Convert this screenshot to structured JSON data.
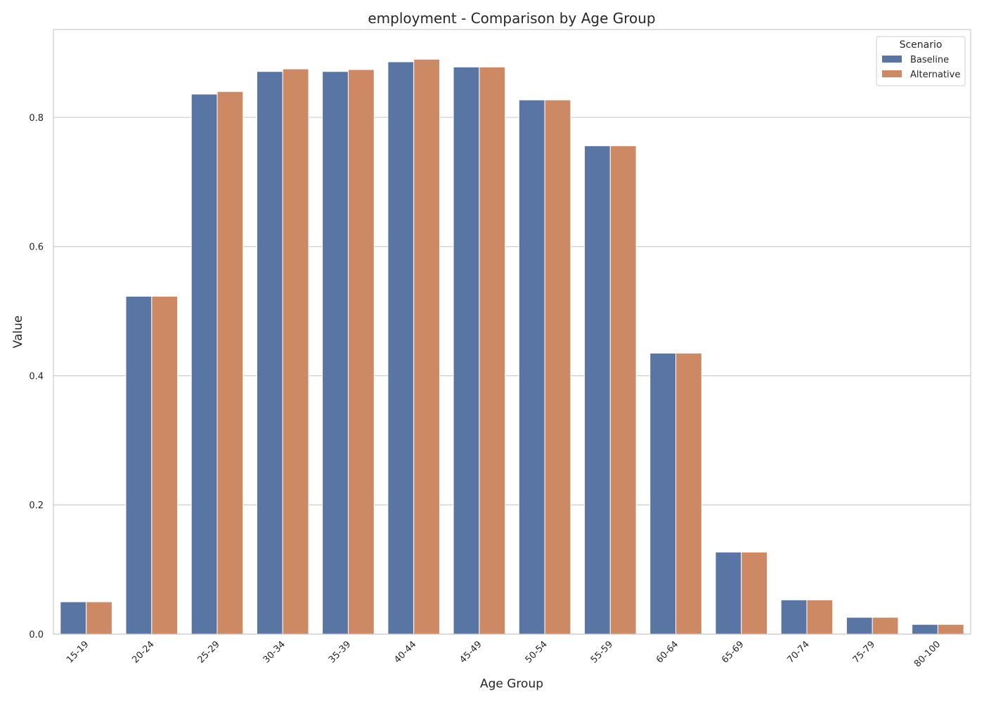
{
  "chart_data": {
    "type": "bar",
    "title": "employment - Comparison by Age Group",
    "xlabel": "Age Group",
    "ylabel": "Value",
    "ylim": [
      0,
      0.936
    ],
    "yticks": [
      "0.0",
      "0.2",
      "0.4",
      "0.6",
      "0.8"
    ],
    "categories": [
      "15-19",
      "20-24",
      "25-29",
      "30-34",
      "35-39",
      "40-44",
      "45-49",
      "50-54",
      "55-59",
      "60-64",
      "65-69",
      "70-74",
      "75-79",
      "80-100"
    ],
    "series": [
      {
        "name": "Baseline",
        "values": [
          0.05,
          0.523,
          0.836,
          0.871,
          0.871,
          0.886,
          0.878,
          0.827,
          0.756,
          0.435,
          0.127,
          0.053,
          0.026,
          0.015
        ]
      },
      {
        "name": "Alternative",
        "values": [
          0.05,
          0.523,
          0.84,
          0.875,
          0.874,
          0.89,
          0.878,
          0.827,
          0.756,
          0.435,
          0.127,
          0.053,
          0.026,
          0.015
        ]
      }
    ],
    "grid": "horizontal",
    "legend": {
      "title": "Scenario",
      "position": "top-right"
    },
    "colors": {
      "Baseline": "#5975a4",
      "Alternative": "#cc8963"
    }
  }
}
